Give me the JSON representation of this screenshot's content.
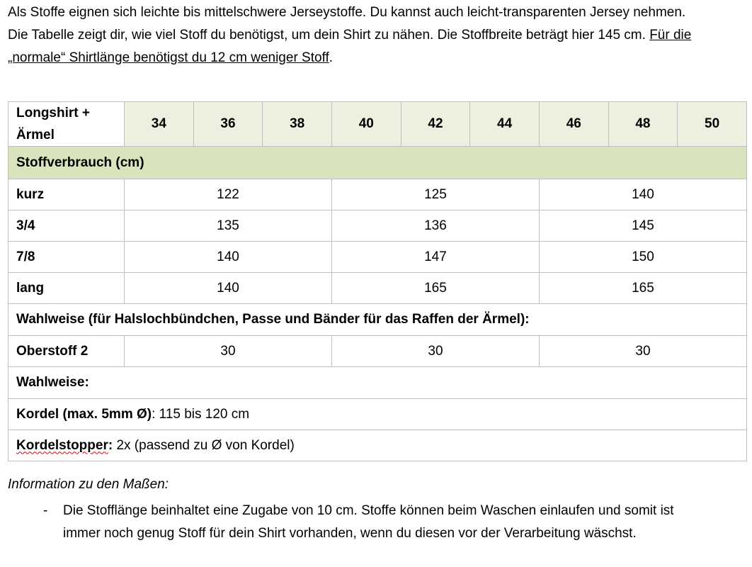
{
  "intro": {
    "line1": "Als Stoffe eignen sich leichte bis mittelschwere Jerseystoffe. Du kannst auch leicht-transparenten Jersey nehmen.",
    "line2a": "Die Tabelle zeigt dir, wie viel Stoff du benötigst, um dein Shirt zu nähen. Die Stoffbreite beträgt hier 145 cm. ",
    "line2b": "Für die „normale“ Shirtlänge benötigst du 12 cm weniger Stoff",
    "line2c": "."
  },
  "table": {
    "corner_line1": "Longshirt +",
    "corner_line2": "Ärmel",
    "sizes": [
      "34",
      "36",
      "38",
      "40",
      "42",
      "44",
      "46",
      "48",
      "50"
    ],
    "section_label": "Stoffverbrauch (cm)",
    "rows": [
      {
        "label": "kurz",
        "values": [
          "122",
          "125",
          "140"
        ]
      },
      {
        "label": "3/4",
        "values": [
          "135",
          "136",
          "145"
        ]
      },
      {
        "label": "7/8",
        "values": [
          "140",
          "147",
          "150"
        ]
      },
      {
        "label": "lang",
        "values": [
          "140",
          "165",
          "165"
        ]
      }
    ],
    "optional_heading": "Wahlweise (für Halslochbündchen, Passe und Bänder für das Raffen der Ärmel):",
    "oberstoff": {
      "label": "Oberstoff 2",
      "values": [
        "30",
        "30",
        "30"
      ]
    },
    "optional2": "Wahlweise:",
    "kordel_label": "Kordel (max. 5mm Ø)",
    "kordel_value": ": 115 bis 120 cm",
    "stopper_label": "Kordelstopper",
    "stopper_colon": ":",
    "stopper_value": " 2x (passend zu Ø von Kordel)"
  },
  "info": {
    "heading": "Information zu den Maßen:",
    "bullet_marker": "-",
    "bullet_text": "Die Stofflänge beinhaltet eine Zugabe von 10 cm. Stoffe können beim Waschen einlaufen und somit ist immer noch genug Stoff für dein Shirt vorhanden, wenn du diesen vor der Verarbeitung wäschst."
  },
  "colors": {
    "header_bg": "#EBF1DE",
    "section_bg": "#D7E4BC",
    "border": "#BFBFBF"
  }
}
